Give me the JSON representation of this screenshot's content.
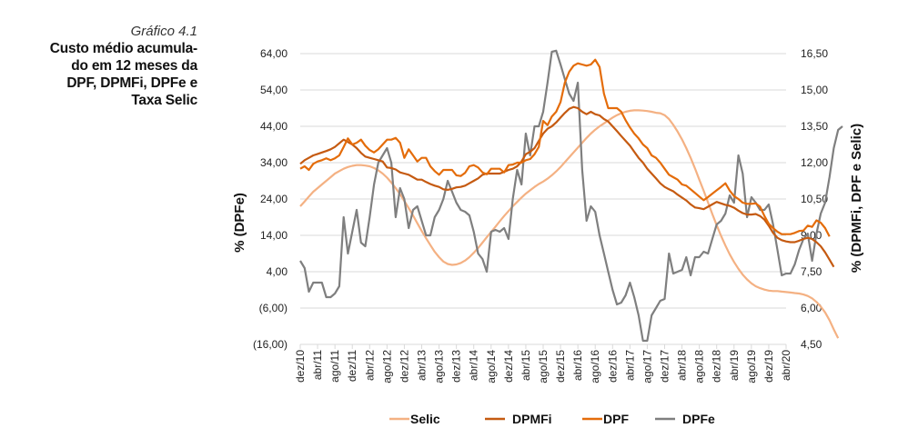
{
  "caption": {
    "number": "Gráfico 4.1",
    "title_lines": [
      "Custo médio acumula-",
      "do em 12 meses da",
      "DPF, DPMFi, DPFe e",
      "Taxa Selic"
    ]
  },
  "chart_data": {
    "type": "line",
    "title": "Custo médio acumulado em 12 meses da DPF, DPMFi, DPFe e Taxa Selic",
    "xlabel": "",
    "ylabel_left": "% (DPFe)",
    "ylabel_right": "% (DPMFi, DPF e Selic)",
    "ylim_left": [
      -16,
      64
    ],
    "ylim_right": [
      4.5,
      16.5
    ],
    "yticks_left": [
      "64,00",
      "54,00",
      "44,00",
      "34,00",
      "24,00",
      "14,00",
      "4,00",
      "(6,00)",
      "(16,00)"
    ],
    "yticks_right": [
      "16,50",
      "15,00",
      "13,50",
      "12,00",
      "10,50",
      "9,00",
      "7,50",
      "6,00",
      "4,50"
    ],
    "grid": true,
    "legend_position": "bottom",
    "x_tick_labels": [
      "dez/10",
      "abr/11",
      "ago/11",
      "dez/11",
      "abr/12",
      "ago/12",
      "dez/12",
      "abr/13",
      "ago/13",
      "dez/13",
      "abr/14",
      "ago/14",
      "dez/14",
      "abr/15",
      "ago/15",
      "dez/15",
      "abr/16",
      "ago/16",
      "dez/16",
      "abr/17",
      "ago/17",
      "dez/17",
      "abr/18",
      "ago/18",
      "dez/18",
      "abr/19",
      "ago/19",
      "dez/19",
      "abr/20"
    ],
    "x_tick_step_months": 4,
    "n_points": 113,
    "series": [
      {
        "name": "Selic",
        "axis": "right",
        "color": "#F4B183",
        "values": [
          10.2,
          10.4,
          10.6,
          10.8,
          10.95,
          11.1,
          11.25,
          11.4,
          11.55,
          11.65,
          11.75,
          11.82,
          11.87,
          11.9,
          11.9,
          11.88,
          11.85,
          11.78,
          11.68,
          11.55,
          11.38,
          11.18,
          10.95,
          10.7,
          10.42,
          10.12,
          9.82,
          9.5,
          9.18,
          8.88,
          8.6,
          8.32,
          8.1,
          7.92,
          7.82,
          7.78,
          7.8,
          7.86,
          7.96,
          8.1,
          8.28,
          8.48,
          8.7,
          8.92,
          9.14,
          9.36,
          9.58,
          9.8,
          10.0,
          10.2,
          10.38,
          10.56,
          10.72,
          10.86,
          11.0,
          11.12,
          11.22,
          11.34,
          11.48,
          11.64,
          11.82,
          12.02,
          12.22,
          12.42,
          12.62,
          12.82,
          13.02,
          13.2,
          13.36,
          13.5,
          13.62,
          13.74,
          13.86,
          13.96,
          14.04,
          14.1,
          14.14,
          14.16,
          14.16,
          14.15,
          14.13,
          14.1,
          14.06,
          14.04,
          13.96,
          13.8,
          13.56,
          13.28,
          12.96,
          12.6,
          12.2,
          11.76,
          11.3,
          10.84,
          10.36,
          9.88,
          9.42,
          8.98,
          8.58,
          8.22,
          7.9,
          7.62,
          7.38,
          7.18,
          7.02,
          6.9,
          6.82,
          6.76,
          6.72,
          6.7,
          6.7,
          6.68,
          6.66,
          6.64,
          6.62,
          6.6,
          6.56,
          6.5,
          6.4,
          6.25,
          6.06,
          5.82,
          5.5,
          5.12,
          4.76
        ]
      },
      {
        "name": "DPMFi",
        "axis": "right",
        "color": "#C55A11",
        "values": [
          11.95,
          12.1,
          12.2,
          12.3,
          12.36,
          12.42,
          12.48,
          12.55,
          12.65,
          12.8,
          12.95,
          12.85,
          12.75,
          12.6,
          12.4,
          12.25,
          12.2,
          12.15,
          12.1,
          12.05,
          11.8,
          11.78,
          11.72,
          11.6,
          11.55,
          11.5,
          11.4,
          11.3,
          11.3,
          11.2,
          11.12,
          11.05,
          11.0,
          10.9,
          10.88,
          10.92,
          10.98,
          11.0,
          11.05,
          11.15,
          11.25,
          11.35,
          11.5,
          11.55,
          11.55,
          11.55,
          11.55,
          11.62,
          11.7,
          11.75,
          11.85,
          12.05,
          12.35,
          12.45,
          12.6,
          12.9,
          13.2,
          13.4,
          13.5,
          13.66,
          13.86,
          14.05,
          14.22,
          14.3,
          14.25,
          14.1,
          14.0,
          14.1,
          14.0,
          13.95,
          13.8,
          13.7,
          13.5,
          13.3,
          13.1,
          12.9,
          12.7,
          12.45,
          12.2,
          12.0,
          11.75,
          11.55,
          11.35,
          11.15,
          11.0,
          10.9,
          10.82,
          10.68,
          10.56,
          10.44,
          10.28,
          10.15,
          10.12,
          10.08,
          10.18,
          10.28,
          10.38,
          10.32,
          10.26,
          10.22,
          10.14,
          10.02,
          9.92,
          9.86,
          9.86,
          9.88,
          9.8,
          9.65,
          9.4,
          9.1,
          8.9,
          8.8,
          8.75,
          8.72,
          8.72,
          8.78,
          8.85,
          8.9,
          8.85,
          8.72,
          8.55,
          8.3,
          8.0,
          7.7
        ]
      },
      {
        "name": "DPF",
        "axis": "right",
        "color": "#E46C0A",
        "values": [
          11.75,
          11.85,
          11.7,
          11.95,
          12.05,
          12.1,
          12.18,
          12.1,
          12.18,
          12.3,
          12.65,
          13.0,
          12.75,
          12.82,
          12.95,
          12.7,
          12.52,
          12.42,
          12.55,
          12.75,
          12.95,
          12.95,
          13.02,
          12.82,
          12.2,
          12.55,
          12.3,
          12.05,
          12.2,
          12.2,
          11.85,
          11.65,
          11.5,
          11.7,
          11.7,
          11.7,
          11.48,
          11.45,
          11.58,
          11.85,
          11.9,
          11.8,
          11.6,
          11.52,
          11.75,
          11.75,
          11.75,
          11.6,
          11.9,
          11.92,
          12.0,
          12.0,
          12.1,
          12.15,
          12.35,
          12.65,
          13.72,
          13.55,
          13.9,
          14.1,
          14.5,
          15.3,
          15.75,
          16.0,
          16.1,
          16.05,
          16.0,
          16.05,
          16.25,
          15.95,
          14.85,
          14.25,
          14.25,
          14.25,
          14.1,
          13.75,
          13.45,
          13.2,
          13.0,
          12.75,
          12.6,
          12.3,
          12.2,
          12.0,
          11.75,
          11.5,
          11.4,
          11.3,
          11.1,
          11.05,
          10.9,
          10.75,
          10.6,
          10.45,
          10.58,
          10.72,
          10.86,
          11.0,
          11.15,
          10.85,
          10.62,
          10.5,
          10.35,
          10.3,
          10.3,
          10.32,
          10.18,
          9.8,
          9.48,
          9.3,
          9.15,
          9.05,
          9.05,
          9.05,
          9.1,
          9.18,
          9.2,
          9.4,
          9.35,
          9.62,
          9.52,
          9.3,
          8.95
        ]
      },
      {
        "name": "DPFe",
        "axis": "left",
        "color": "#7F7F7F",
        "values": [
          7.0,
          5.0,
          -1.5,
          1.0,
          1.0,
          1.0,
          -3.0,
          -3.0,
          -2.0,
          0.0,
          19.0,
          9.0,
          15.0,
          21.0,
          12.0,
          11.0,
          19.0,
          28.0,
          34.0,
          36.0,
          38.0,
          34.0,
          19.0,
          27.0,
          24.0,
          16.0,
          21.0,
          22.0,
          18.0,
          14.0,
          14.0,
          19.0,
          21.0,
          24.0,
          29.0,
          26.0,
          23.0,
          21.0,
          20.5,
          19.5,
          15.0,
          9.0,
          7.5,
          4.0,
          15.0,
          15.5,
          15.0,
          16.0,
          13.0,
          24.0,
          32.0,
          28.0,
          42.0,
          36.0,
          44.0,
          44.0,
          48.0,
          56.0,
          64.5,
          64.8,
          61.0,
          57.0,
          53.0,
          51.0,
          56.0,
          32.0,
          18.0,
          22.0,
          20.5,
          14.0,
          9.0,
          4.0,
          -1.0,
          -5.0,
          -4.5,
          -2.5,
          1.0,
          -3.0,
          -8.0,
          -15.0,
          -15.0,
          -8.0,
          -6.0,
          -4.0,
          -3.5,
          9.0,
          3.5,
          4.0,
          4.5,
          8.0,
          3.0,
          8.0,
          8.0,
          9.5,
          9.0,
          13.0,
          17.0,
          18.0,
          20.0,
          25.0,
          23.0,
          36.0,
          31.0,
          19.0,
          24.5,
          23.0,
          21.0,
          21.0,
          22.5,
          17.0,
          10.0,
          3.0,
          3.5,
          3.5,
          6.0,
          10.0,
          13.0,
          14.5,
          7.0,
          14.5,
          20.0,
          23.0,
          30.0,
          38.0,
          43.0,
          44.0
        ]
      }
    ]
  }
}
